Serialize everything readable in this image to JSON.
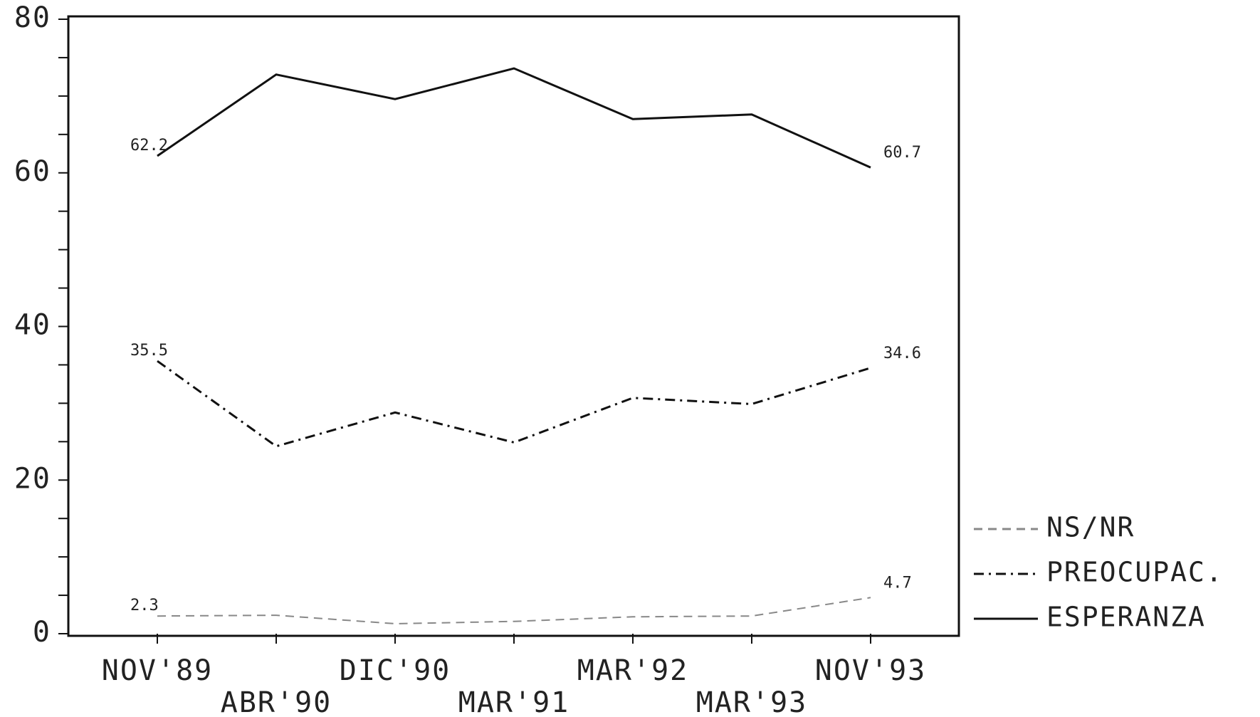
{
  "chart_data": {
    "type": "line",
    "categories": [
      "NOV'89",
      "ABR'90",
      "DIC'90",
      "MAR'91",
      "MAR'92",
      "MAR'93",
      "NOV'93"
    ],
    "series": [
      {
        "name": "NS/NR",
        "color": "#888888",
        "style": "dashed",
        "values": [
          2.3,
          2.4,
          1.3,
          1.6,
          2.2,
          2.3,
          4.7
        ]
      },
      {
        "name": "PREOCUPAC.",
        "color": "#111111",
        "style": "dashdot",
        "values": [
          35.5,
          24.4,
          28.8,
          24.9,
          30.7,
          29.9,
          34.6
        ]
      },
      {
        "name": "ESPERANZA",
        "color": "#111111",
        "style": "solid",
        "values": [
          62.2,
          72.8,
          69.6,
          73.6,
          67.0,
          67.6,
          60.7
        ]
      }
    ],
    "ylim": [
      0,
      80
    ],
    "yticks": [
      0,
      20,
      40,
      60,
      80
    ],
    "yminorticks": [
      5,
      10,
      15,
      25,
      30,
      35,
      45,
      50,
      55,
      65,
      70,
      75
    ],
    "data_labels": "ends",
    "legend": "lower right",
    "grid": false
  }
}
